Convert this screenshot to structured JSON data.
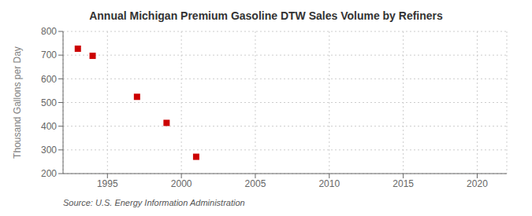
{
  "chart_data": {
    "type": "scatter",
    "title": "Annual Michigan Premium Gasoline DTW Sales Volume by Refiners",
    "ylabel": "Thousand Gallons per Day",
    "annotations": [
      "Source: U.S. Energy Information Administration"
    ],
    "x": [
      1993,
      1994,
      1997,
      1999,
      2001
    ],
    "values": [
      727,
      697,
      524,
      414,
      271
    ],
    "color": "#cc0000",
    "marker": "square",
    "xlim": [
      1992,
      2022
    ],
    "ylim": [
      200,
      800
    ],
    "xticks": [
      1995,
      2000,
      2005,
      2010,
      2015,
      2020
    ],
    "yticks": [
      200,
      300,
      400,
      500,
      600,
      700,
      800
    ],
    "grid": true
  }
}
